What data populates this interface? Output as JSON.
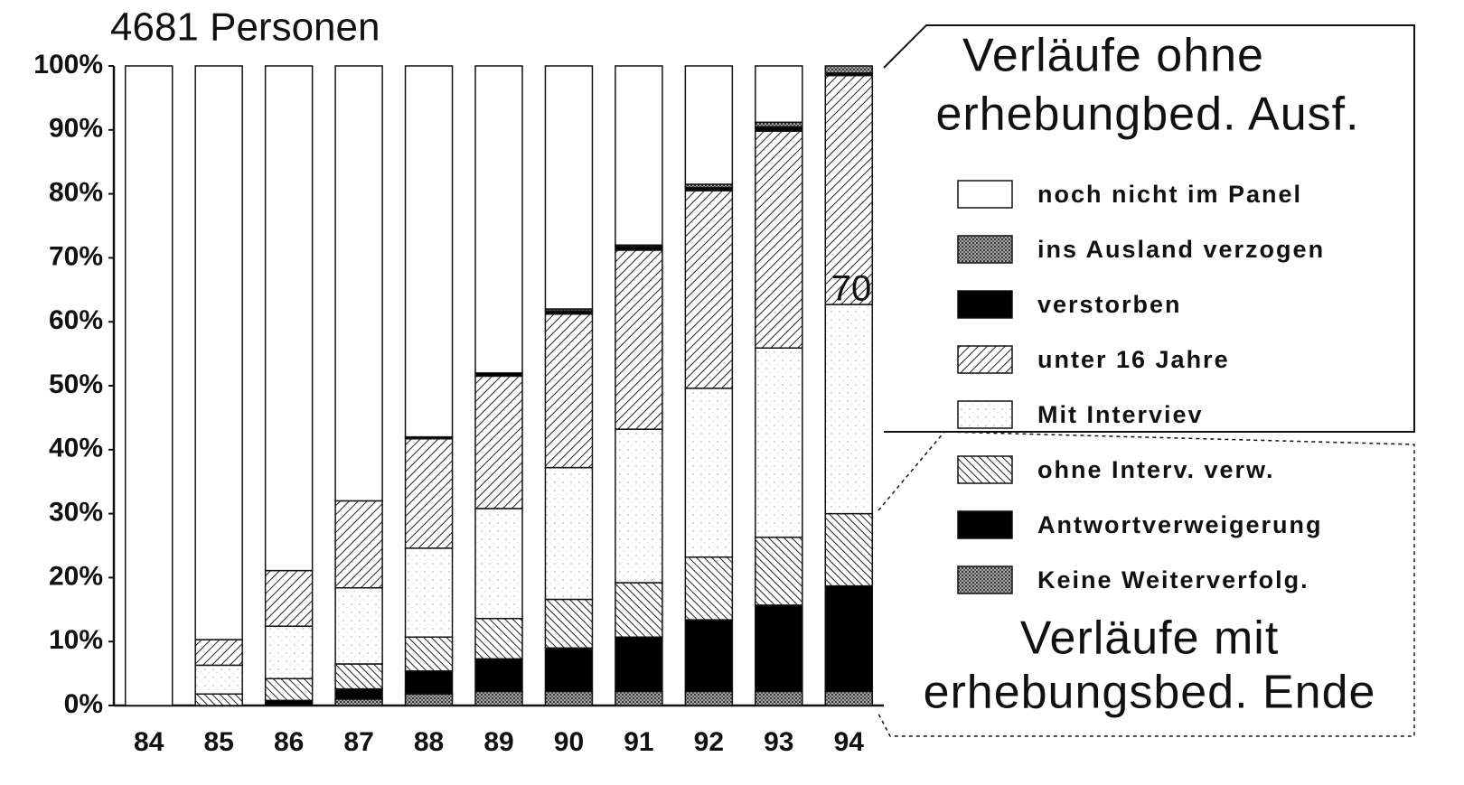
{
  "chart_data": {
    "type": "stacked_bar",
    "title": "4681 Personen",
    "categories": [
      "84",
      "85",
      "86",
      "87",
      "88",
      "89",
      "90",
      "91",
      "92",
      "93",
      "94"
    ],
    "series": [
      {
        "name": "noch nicht im Panel",
        "color": "#ffffff",
        "pattern": "none",
        "values": [
          100,
          89.7,
          78.9,
          68.0,
          58.0,
          48.0,
          38.0,
          28.0,
          18.5,
          8.8,
          0
        ]
      },
      {
        "name": "ins Ausland verzogen",
        "color": "#777777",
        "pattern": "stipple",
        "values": [
          0,
          0,
          0,
          0,
          0,
          0,
          0.3,
          0.2,
          0.5,
          0.7,
          1.1
        ]
      },
      {
        "name": "verstorben",
        "color": "#000000",
        "pattern": "none",
        "values": [
          0,
          0,
          0,
          0,
          0.3,
          0.5,
          0.5,
          0.6,
          0.5,
          0.7,
          0.4
        ]
      },
      {
        "name": "unter 16 Jahre",
        "color": "#444444",
        "pattern": "hatch-up",
        "values": [
          0,
          4.0,
          8.7,
          13.6,
          17.1,
          20.7,
          24.0,
          28.0,
          30.9,
          33.9,
          35.8
        ]
      },
      {
        "name": "Mit Interviev",
        "color": "#ffffff",
        "pattern": "dots",
        "values": [
          0,
          4.5,
          8.2,
          11.9,
          13.9,
          17.2,
          20.6,
          24.0,
          26.4,
          29.6,
          32.7
        ]
      },
      {
        "name": "ohne Interv. verw.",
        "color": "#444444",
        "pattern": "hatch-down",
        "values": [
          0,
          1.8,
          3.4,
          3.9,
          5.3,
          6.3,
          7.6,
          8.5,
          9.8,
          10.6,
          11.3
        ]
      },
      {
        "name": "Antwortverweigerung",
        "color": "#000000",
        "pattern": "none",
        "values": [
          0,
          0,
          0.8,
          1.6,
          3.6,
          5.1,
          6.8,
          8.5,
          11.2,
          13.5,
          16.5
        ]
      },
      {
        "name": "Keine Weiterverfolg.",
        "color": "#777777",
        "pattern": "stipple",
        "values": [
          0,
          0,
          0,
          1.0,
          1.8,
          2.2,
          2.2,
          2.2,
          2.2,
          2.2,
          2.2
        ]
      }
    ],
    "legend_titles": [
      "Verläufe ohne",
      "erhebungbed. Ausf.",
      "Verläufe mit",
      "erhebungsbed. Ende"
    ],
    "annotation": "70",
    "ylim": [
      0,
      100
    ],
    "yticks": [
      {
        "value": 0,
        "label": "0%"
      },
      {
        "value": 10,
        "label": "10%"
      },
      {
        "value": 20,
        "label": "20%"
      },
      {
        "value": 30,
        "label": "30%"
      },
      {
        "value": 40,
        "label": "40%"
      },
      {
        "value": 50,
        "label": "50%"
      },
      {
        "value": 60,
        "label": "60%"
      },
      {
        "value": 70,
        "label": "70%"
      },
      {
        "value": 80,
        "label": "80%"
      },
      {
        "value": 90,
        "label": "90%"
      },
      {
        "value": 100,
        "label": "100%"
      }
    ],
    "grid": false
  }
}
